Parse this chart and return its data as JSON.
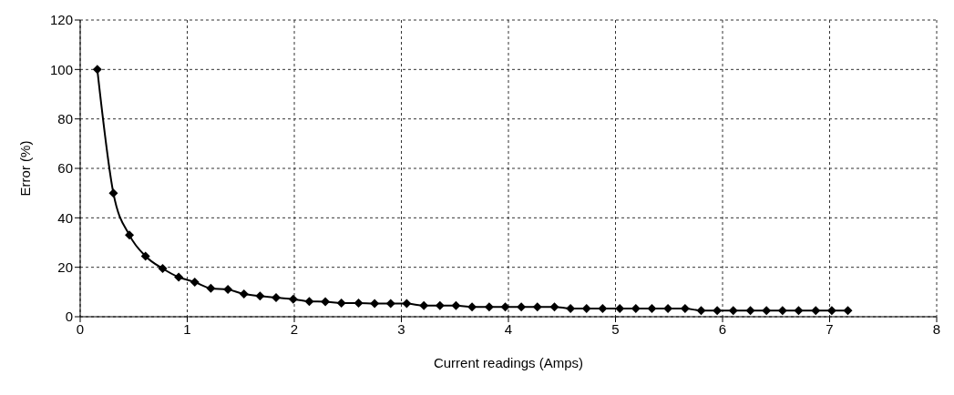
{
  "chart_data": {
    "type": "line",
    "xlabel": "Current readings (Amps)",
    "ylabel": "Error (%)",
    "x": [
      0.16,
      0.31,
      0.46,
      0.61,
      0.77,
      0.92,
      1.07,
      1.22,
      1.38,
      1.53,
      1.68,
      1.83,
      1.99,
      2.14,
      2.29,
      2.44,
      2.6,
      2.75,
      2.9,
      3.05,
      3.21,
      3.36,
      3.51,
      3.66,
      3.82,
      3.97,
      4.12,
      4.27,
      4.43,
      4.58,
      4.73,
      4.88,
      5.04,
      5.19,
      5.34,
      5.49,
      5.65,
      5.8,
      5.95,
      6.1,
      6.26,
      6.41,
      6.56,
      6.71,
      6.87,
      7.02,
      7.17
    ],
    "series": [
      {
        "color": "#000000",
        "values": [
          100,
          50,
          33,
          24.5,
          19.5,
          16,
          14,
          11.5,
          11,
          9.2,
          8.4,
          7.7,
          7.1,
          6.2,
          6.1,
          5.5,
          5.5,
          5.3,
          5.3,
          5.3,
          4.5,
          4.5,
          4.5,
          4,
          4,
          4,
          4,
          4,
          4,
          3.3,
          3.3,
          3.3,
          3.3,
          3.3,
          3.3,
          3.3,
          3.3,
          2.5,
          2.5,
          2.5,
          2.5,
          2.5,
          2.5,
          2.5,
          2.5,
          2.5,
          2.5
        ]
      }
    ],
    "xlim": [
      0,
      8
    ],
    "xticks": [
      0,
      1,
      2,
      3,
      4,
      5,
      6,
      7,
      8
    ],
    "ylim": [
      0,
      120
    ],
    "yticks": [
      0,
      20,
      40,
      60,
      80,
      100,
      120
    ],
    "grid": true,
    "marker": "diamond",
    "line_style": "solid",
    "legend": false
  }
}
